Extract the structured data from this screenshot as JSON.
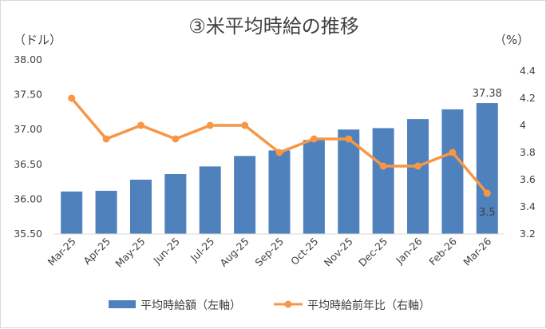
{
  "chart_data": {
    "type": "bar",
    "title": "③米平均時給の推移",
    "left_unit": "（ドル）",
    "right_unit": "（%）",
    "categories": [
      "Mar-25",
      "Apr-25",
      "May-25",
      "Jun-25",
      "Jul-25",
      "Aug-25",
      "Sep-25",
      "Oct-25",
      "Nov-25",
      "Dec-25",
      "Jan-26",
      "Feb-26",
      "Mar-26"
    ],
    "series": [
      {
        "name": "平均時給額（左軸）",
        "type": "bar",
        "axis": "left",
        "color": "#4f81bd",
        "values": [
          36.11,
          36.12,
          36.28,
          36.36,
          36.47,
          36.62,
          36.7,
          36.85,
          37.0,
          37.02,
          37.15,
          37.29,
          37.38
        ]
      },
      {
        "name": "平均時給前年比（右軸）",
        "type": "line",
        "axis": "right",
        "color": "#f79646",
        "values": [
          4.2,
          3.9,
          4.0,
          3.9,
          4.0,
          4.0,
          3.8,
          3.9,
          3.9,
          3.7,
          3.7,
          3.8,
          3.5
        ]
      }
    ],
    "left_axis": {
      "ylim": [
        35.5,
        38.0
      ],
      "ticks": [
        "35.50",
        "36.00",
        "36.50",
        "37.00",
        "37.50",
        "38.00"
      ]
    },
    "right_axis": {
      "ylim": [
        3.2,
        4.4
      ],
      "ticks": [
        "3.2",
        "3.4",
        "3.6",
        "3.8",
        "4",
        "4.2",
        "4.4"
      ]
    },
    "data_labels": {
      "bar_last": "37.38",
      "line_last": "3.5"
    },
    "grid": false,
    "legend": "bottom"
  }
}
